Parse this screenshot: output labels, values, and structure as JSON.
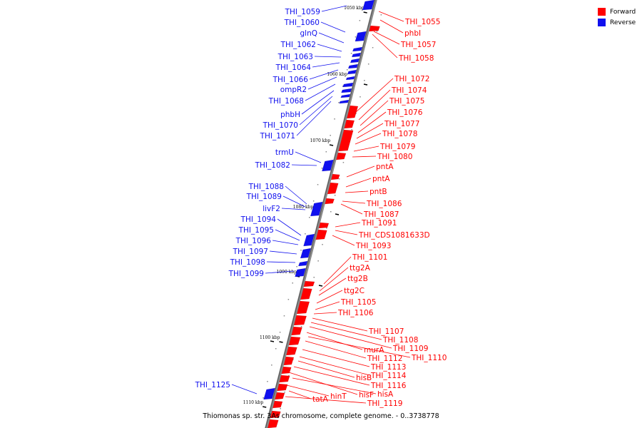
{
  "colors": {
    "forward": "#ff0000",
    "reverse": "#1010ee",
    "axis": "#8a8a8a"
  },
  "legend": {
    "forward": "Forward",
    "reverse": "Reverse"
  },
  "caption": "Thiomonas sp. str. 3As chromosome, complete genome. - 0..3738778",
  "kbp_labels": [
    "1050 kbp",
    "1060 kbp",
    "1070 kbp",
    "1080 kbp",
    "1090 kbp",
    "1100 kbp",
    "1110 kbp"
  ],
  "genes_reverse": [
    "THI_1059",
    "THI_1060",
    "glnQ",
    "THI_1062",
    "THI_1063",
    "THI_1064",
    "THI_1066",
    "ompR2",
    "THI_1068",
    "phbH",
    "THI_1070",
    "THI_1071",
    "trmU",
    "THI_1082",
    "THI_1088",
    "THI_1089",
    "livF2",
    "THI_1094",
    "THI_1095",
    "THI_1096",
    "THI_1097",
    "THI_1098",
    "THI_1099",
    "THI_1125"
  ],
  "genes_forward": [
    "THI_1055",
    "phbI",
    "THI_1057",
    "THI_1058",
    "THI_1072",
    "THI_1074",
    "THI_1075",
    "THI_1076",
    "THI_1077",
    "THI_1078",
    "THI_1079",
    "THI_1080",
    "pntA",
    "pntA",
    "pntB",
    "THI_1086",
    "THI_1087",
    "THI_1091",
    "THI_CDS1081633D",
    "THI_1093",
    "THI_1101",
    "ttg2A",
    "ttg2B",
    "ttg2C",
    "THI_1105",
    "THI_1106",
    "THI_1107",
    "THI_1108",
    "THI_1109",
    "murA",
    "THI_1110",
    "THI_1112",
    "THI_1113",
    "THI_1114",
    "hisB",
    "THI_1116",
    "hisF",
    "hisA",
    "hinT",
    "tatA",
    "THI_1119"
  ]
}
